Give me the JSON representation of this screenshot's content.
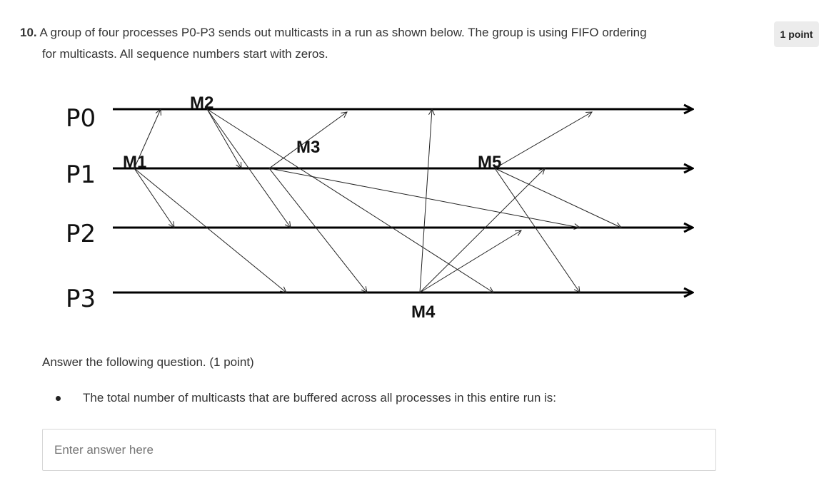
{
  "question": {
    "number": "10.",
    "text_line1": "A group of four processes P0-P3 sends out multicasts in a run as shown below. The group is using FIFO ordering",
    "text_line2": "for multicasts. All sequence numbers start with zeros.",
    "points_badge": "1 point"
  },
  "diagram": {
    "processes": [
      "P0",
      "P1",
      "P2",
      "P3"
    ],
    "messages": [
      "M1",
      "M2",
      "M3",
      "M4",
      "M5"
    ],
    "line_color": "#000000"
  },
  "answer_prompt": "Answer the following question. (1 point)",
  "bullet": "The total number of multicasts that are buffered across all processes in this entire run is:",
  "answer_field": {
    "placeholder": "Enter answer here",
    "value": ""
  }
}
